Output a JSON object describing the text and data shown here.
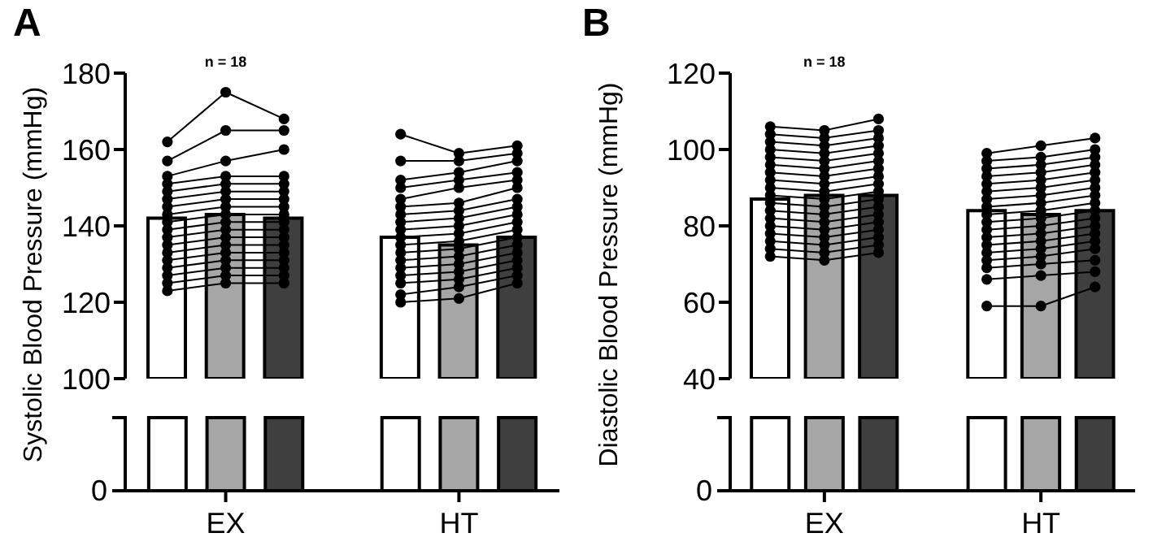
{
  "chart_data": [
    {
      "type": "bar",
      "title": "A",
      "ylabel": "Systolic Blood Pressure (mmHg)",
      "categories": [
        null,
        "EX",
        null,
        null,
        null,
        "HT",
        null
      ],
      "ylim": [
        100,
        180
      ],
      "yticks": [
        100,
        120,
        140,
        160,
        180
      ],
      "marker": "circle",
      "line_style": "solid",
      "annotations": [
        "n = 18",
        "0"
      ],
      "series": [
        {
          "type": "bar",
          "values": [
            142,
            143,
            142,
            null,
            137,
            135,
            137
          ],
          "colors": [
            "#ffffff",
            "#a6a6a6",
            "#3f3f3f",
            null,
            "#ffffff",
            "#a6a6a6",
            "#3f3f3f"
          ]
        },
        {
          "type": "line",
          "color": "#000000",
          "values": [
            162,
            175,
            168,
            null,
            164,
            159,
            161
          ]
        },
        {
          "type": "line",
          "color": "#000000",
          "values": [
            157,
            165,
            165,
            null,
            157,
            157,
            159
          ]
        },
        {
          "type": "line",
          "color": "#000000",
          "values": [
            153,
            157,
            160,
            null,
            152,
            154,
            157
          ]
        },
        {
          "type": "line",
          "color": "#000000",
          "values": [
            151,
            153,
            153,
            null,
            150,
            152,
            154
          ]
        },
        {
          "type": "line",
          "color": "#000000",
          "values": [
            149,
            151,
            151,
            null,
            147,
            150,
            152
          ]
        },
        {
          "type": "line",
          "color": "#000000",
          "values": [
            147,
            149,
            149,
            null,
            145,
            146,
            150
          ]
        },
        {
          "type": "line",
          "color": "#000000",
          "values": [
            145,
            147,
            147,
            null,
            143,
            144,
            147
          ]
        },
        {
          "type": "line",
          "color": "#000000",
          "values": [
            143,
            145,
            145,
            null,
            141,
            142,
            145
          ]
        },
        {
          "type": "line",
          "color": "#000000",
          "values": [
            141,
            143,
            143,
            null,
            139,
            140,
            143
          ]
        },
        {
          "type": "line",
          "color": "#000000",
          "values": [
            139,
            141,
            141,
            null,
            137,
            138,
            141
          ]
        },
        {
          "type": "line",
          "color": "#000000",
          "values": [
            137,
            139,
            139,
            null,
            135,
            136,
            139
          ]
        },
        {
          "type": "line",
          "color": "#000000",
          "values": [
            135,
            137,
            137,
            null,
            133,
            134,
            137
          ]
        },
        {
          "type": "line",
          "color": "#000000",
          "values": [
            133,
            135,
            135,
            null,
            131,
            132,
            135
          ]
        },
        {
          "type": "line",
          "color": "#000000",
          "values": [
            131,
            133,
            133,
            null,
            129,
            130,
            133
          ]
        },
        {
          "type": "line",
          "color": "#000000",
          "values": [
            129,
            131,
            131,
            null,
            127,
            128,
            131
          ]
        },
        {
          "type": "line",
          "color": "#000000",
          "values": [
            127,
            129,
            129,
            null,
            125,
            126,
            129
          ]
        },
        {
          "type": "line",
          "color": "#000000",
          "values": [
            125,
            127,
            127,
            null,
            122,
            124,
            127
          ]
        },
        {
          "type": "line",
          "color": "#000000",
          "values": [
            123,
            125,
            125,
            null,
            120,
            121,
            125
          ]
        }
      ]
    },
    {
      "type": "bar",
      "title": "B",
      "ylabel": "Diastolic Blood Pressure (mmHg)",
      "categories": [
        null,
        "EX",
        null,
        null,
        null,
        "HT",
        null
      ],
      "ylim": [
        40,
        120
      ],
      "yticks": [
        40,
        60,
        80,
        100,
        120
      ],
      "marker": "circle",
      "line_style": "solid",
      "annotations": [
        "n = 18",
        "0"
      ],
      "series": [
        {
          "type": "bar",
          "values": [
            87,
            88,
            88,
            null,
            84,
            83,
            84
          ],
          "colors": [
            "#ffffff",
            "#a6a6a6",
            "#3f3f3f",
            null,
            "#ffffff",
            "#a6a6a6",
            "#3f3f3f"
          ]
        },
        {
          "type": "line",
          "color": "#000000",
          "values": [
            106,
            105,
            108,
            null,
            99,
            101,
            103
          ]
        },
        {
          "type": "line",
          "color": "#000000",
          "values": [
            104,
            103,
            105,
            null,
            97,
            98,
            100
          ]
        },
        {
          "type": "line",
          "color": "#000000",
          "values": [
            102,
            101,
            103,
            null,
            95,
            96,
            98
          ]
        },
        {
          "type": "line",
          "color": "#000000",
          "values": [
            100,
            99,
            101,
            null,
            93,
            94,
            96
          ]
        },
        {
          "type": "line",
          "color": "#000000",
          "values": [
            98,
            97,
            99,
            null,
            91,
            92,
            94
          ]
        },
        {
          "type": "line",
          "color": "#000000",
          "values": [
            96,
            95,
            97,
            null,
            89,
            90,
            92
          ]
        },
        {
          "type": "line",
          "color": "#000000",
          "values": [
            94,
            93,
            95,
            null,
            87,
            88,
            90
          ]
        },
        {
          "type": "line",
          "color": "#000000",
          "values": [
            92,
            91,
            93,
            null,
            85,
            86,
            88
          ]
        },
        {
          "type": "line",
          "color": "#000000",
          "values": [
            90,
            89,
            91,
            null,
            83,
            84,
            86
          ]
        },
        {
          "type": "line",
          "color": "#000000",
          "values": [
            88,
            87,
            89,
            null,
            81,
            82,
            84
          ]
        },
        {
          "type": "line",
          "color": "#000000",
          "values": [
            86,
            85,
            87,
            null,
            79,
            80,
            82
          ]
        },
        {
          "type": "line",
          "color": "#000000",
          "values": [
            84,
            83,
            85,
            null,
            77,
            78,
            80
          ]
        },
        {
          "type": "line",
          "color": "#000000",
          "values": [
            82,
            81,
            83,
            null,
            75,
            76,
            78
          ]
        },
        {
          "type": "line",
          "color": "#000000",
          "values": [
            80,
            79,
            81,
            null,
            73,
            74,
            76
          ]
        },
        {
          "type": "line",
          "color": "#000000",
          "values": [
            78,
            77,
            79,
            null,
            71,
            72,
            74
          ]
        },
        {
          "type": "line",
          "color": "#000000",
          "values": [
            76,
            75,
            77,
            null,
            69,
            70,
            71
          ]
        },
        {
          "type": "line",
          "color": "#000000",
          "values": [
            74,
            73,
            75,
            null,
            66,
            67,
            68
          ]
        },
        {
          "type": "line",
          "color": "#000000",
          "values": [
            72,
            71,
            73,
            null,
            59,
            59,
            64
          ]
        }
      ]
    }
  ]
}
